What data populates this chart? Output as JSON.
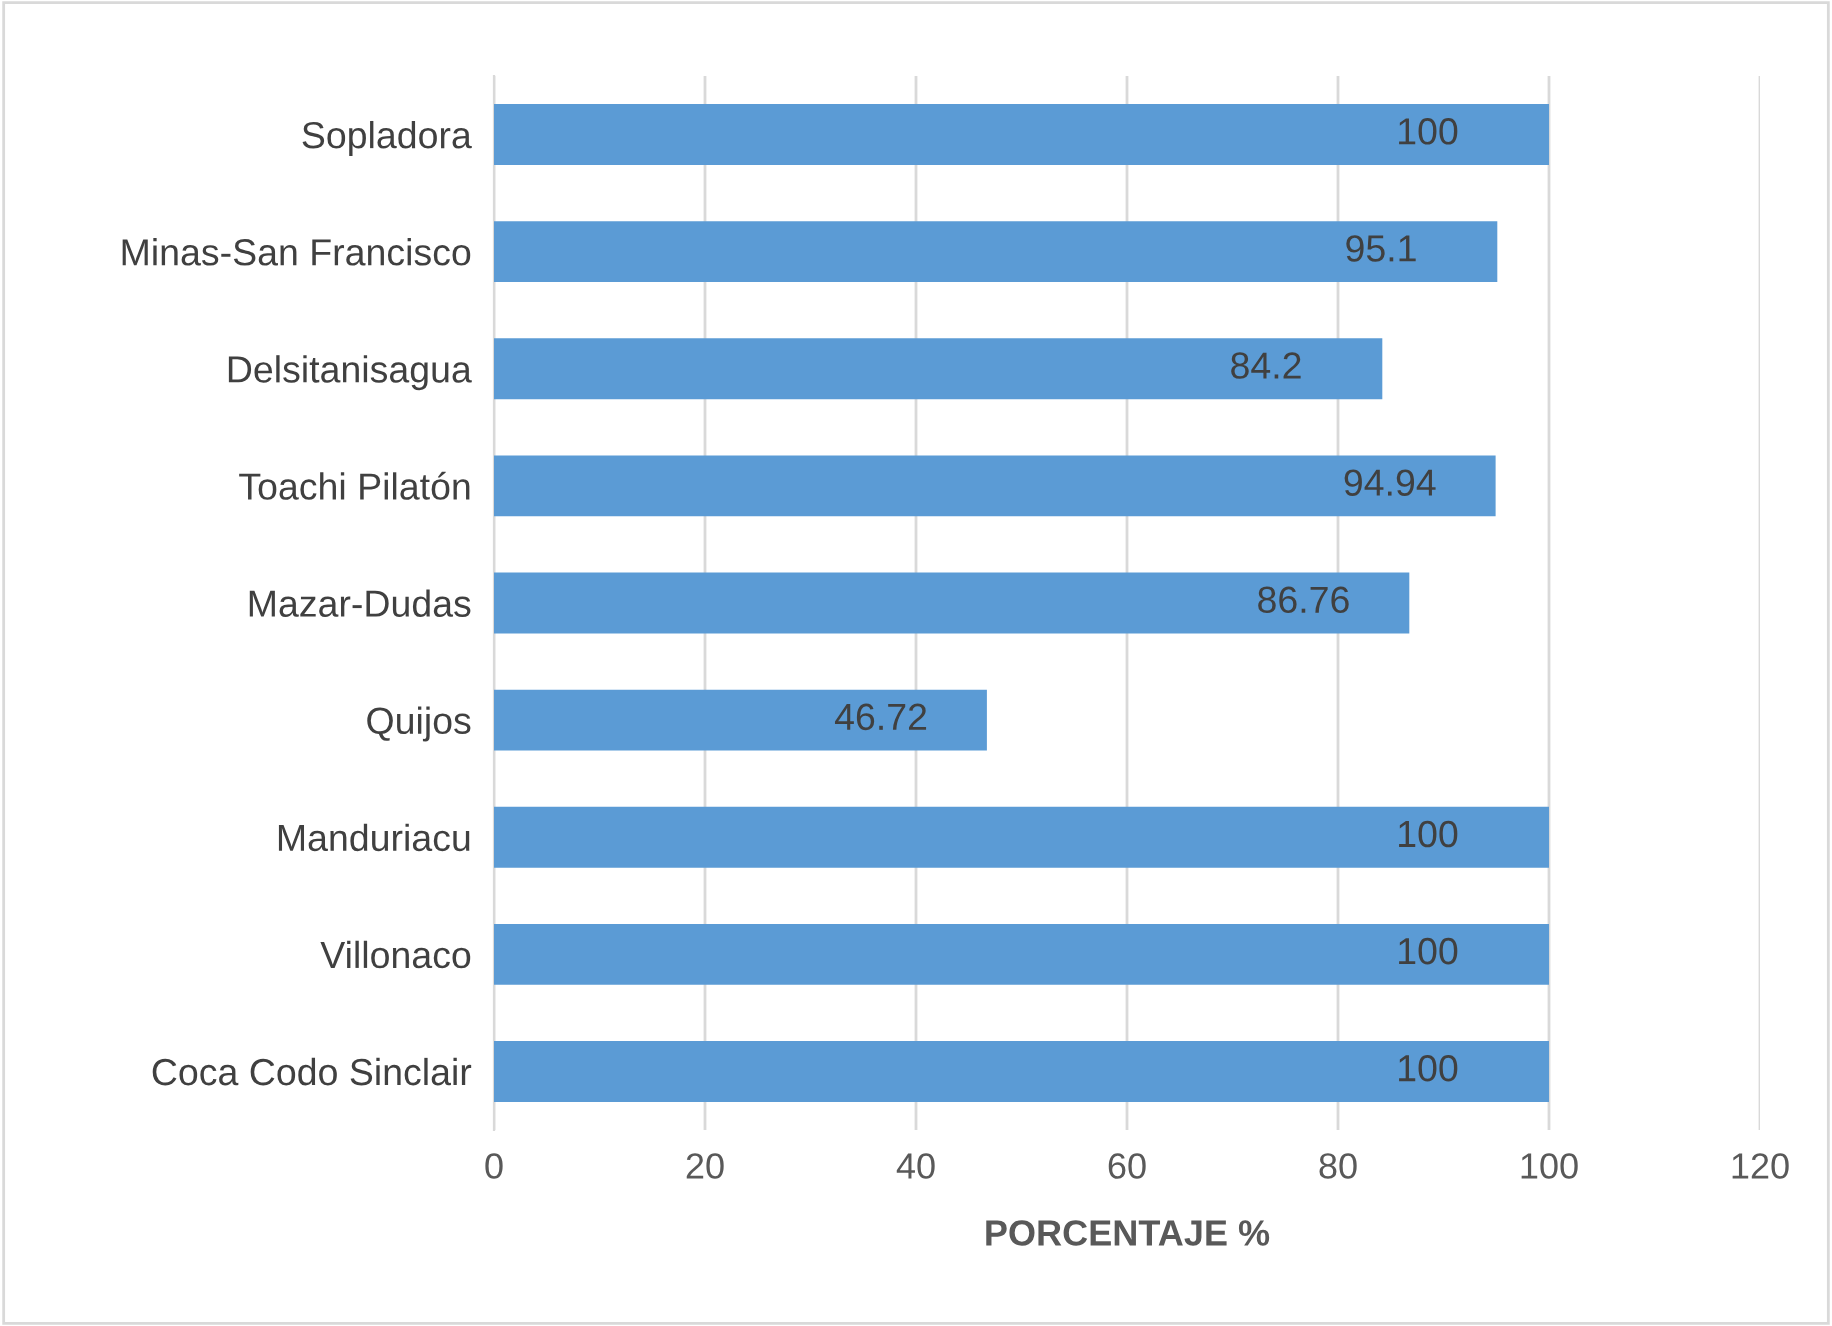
{
  "chart_data": {
    "type": "bar",
    "orientation": "horizontal",
    "xlabel": "PORCENTAJE %",
    "categories": [
      "Sopladora",
      "Minas-San Francisco",
      "Delsitanisagua",
      "Toachi Pilatón",
      "Mazar-Dudas",
      "Quijos",
      "Manduriacu",
      "Villonaco",
      "Coca Codo Sinclair"
    ],
    "values": [
      100,
      95.1,
      84.2,
      94.94,
      86.76,
      46.72,
      100,
      100,
      100
    ],
    "color": "#5b9bd5",
    "xlim": [
      0,
      120
    ],
    "xticks": [
      0,
      20,
      40,
      60,
      80,
      100,
      120
    ],
    "grid": "x",
    "data_labels": true
  }
}
